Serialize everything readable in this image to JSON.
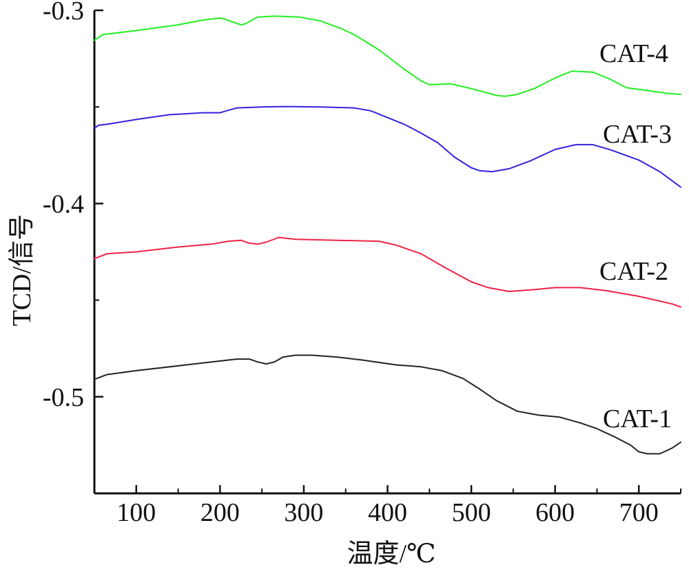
{
  "chart_data": {
    "type": "line",
    "xlabel": "温度/℃",
    "ylabel": "TCD/信号",
    "xlim": [
      50,
      750
    ],
    "ylim": [
      -0.55,
      -0.3
    ],
    "x_ticks": [
      "100",
      "200",
      "300",
      "400",
      "500",
      "600",
      "700"
    ],
    "y_ticks": [
      "-0.3",
      "-0.4",
      "-0.5"
    ],
    "grid": false,
    "legend": "labels beside curves on the right",
    "series": [
      {
        "name": "CAT-4",
        "color": "#22ee22",
        "points": [
          [
            50,
            -0.3155
          ],
          [
            60,
            -0.3125
          ],
          [
            100,
            -0.3105
          ],
          [
            150,
            -0.3075
          ],
          [
            180,
            -0.305
          ],
          [
            200,
            -0.304
          ],
          [
            205,
            -0.3045
          ],
          [
            225,
            -0.3075
          ],
          [
            230,
            -0.307
          ],
          [
            245,
            -0.3035
          ],
          [
            265,
            -0.303
          ],
          [
            295,
            -0.3035
          ],
          [
            320,
            -0.3055
          ],
          [
            345,
            -0.3095
          ],
          [
            360,
            -0.3125
          ],
          [
            390,
            -0.3205
          ],
          [
            420,
            -0.3305
          ],
          [
            440,
            -0.3365
          ],
          [
            450,
            -0.3385
          ],
          [
            475,
            -0.338
          ],
          [
            500,
            -0.3405
          ],
          [
            530,
            -0.344
          ],
          [
            540,
            -0.3445
          ],
          [
            555,
            -0.3435
          ],
          [
            575,
            -0.3405
          ],
          [
            600,
            -0.335
          ],
          [
            620,
            -0.3315
          ],
          [
            645,
            -0.332
          ],
          [
            665,
            -0.3355
          ],
          [
            685,
            -0.34
          ],
          [
            710,
            -0.3415
          ],
          [
            735,
            -0.343
          ],
          [
            750,
            -0.3435
          ]
        ]
      },
      {
        "name": "CAT-3",
        "color": "#3322dd",
        "points": [
          [
            50,
            -0.361
          ],
          [
            55,
            -0.3595
          ],
          [
            65,
            -0.359
          ],
          [
            100,
            -0.3565
          ],
          [
            140,
            -0.354
          ],
          [
            180,
            -0.353
          ],
          [
            200,
            -0.353
          ],
          [
            220,
            -0.3505
          ],
          [
            250,
            -0.35
          ],
          [
            280,
            -0.3498
          ],
          [
            320,
            -0.35
          ],
          [
            360,
            -0.3505
          ],
          [
            380,
            -0.352
          ],
          [
            420,
            -0.359
          ],
          [
            440,
            -0.3635
          ],
          [
            460,
            -0.3685
          ],
          [
            480,
            -0.376
          ],
          [
            500,
            -0.3815
          ],
          [
            510,
            -0.383
          ],
          [
            525,
            -0.3835
          ],
          [
            545,
            -0.382
          ],
          [
            570,
            -0.378
          ],
          [
            600,
            -0.372
          ],
          [
            625,
            -0.3695
          ],
          [
            645,
            -0.3695
          ],
          [
            665,
            -0.372
          ],
          [
            700,
            -0.3775
          ],
          [
            725,
            -0.3835
          ],
          [
            750,
            -0.3915
          ]
        ]
      },
      {
        "name": "CAT-2",
        "color": "#ee2244",
        "points": [
          [
            50,
            -0.4285
          ],
          [
            65,
            -0.426
          ],
          [
            100,
            -0.425
          ],
          [
            150,
            -0.4225
          ],
          [
            190,
            -0.421
          ],
          [
            210,
            -0.4195
          ],
          [
            225,
            -0.419
          ],
          [
            235,
            -0.4205
          ],
          [
            245,
            -0.421
          ],
          [
            255,
            -0.42
          ],
          [
            270,
            -0.4175
          ],
          [
            290,
            -0.4185
          ],
          [
            340,
            -0.419
          ],
          [
            390,
            -0.4195
          ],
          [
            410,
            -0.4215
          ],
          [
            440,
            -0.426
          ],
          [
            470,
            -0.4335
          ],
          [
            500,
            -0.4405
          ],
          [
            520,
            -0.4435
          ],
          [
            545,
            -0.4455
          ],
          [
            575,
            -0.4445
          ],
          [
            600,
            -0.4435
          ],
          [
            630,
            -0.4435
          ],
          [
            660,
            -0.445
          ],
          [
            700,
            -0.448
          ],
          [
            740,
            -0.452
          ],
          [
            750,
            -0.4535
          ]
        ]
      },
      {
        "name": "CAT-1",
        "color": "#222222",
        "points": [
          [
            50,
            -0.491
          ],
          [
            65,
            -0.4885
          ],
          [
            100,
            -0.4865
          ],
          [
            150,
            -0.484
          ],
          [
            190,
            -0.482
          ],
          [
            220,
            -0.4805
          ],
          [
            235,
            -0.4805
          ],
          [
            245,
            -0.482
          ],
          [
            255,
            -0.483
          ],
          [
            265,
            -0.482
          ],
          [
            275,
            -0.4795
          ],
          [
            290,
            -0.4785
          ],
          [
            310,
            -0.4785
          ],
          [
            340,
            -0.4795
          ],
          [
            370,
            -0.481
          ],
          [
            410,
            -0.4835
          ],
          [
            440,
            -0.4845
          ],
          [
            465,
            -0.4865
          ],
          [
            490,
            -0.4905
          ],
          [
            510,
            -0.496
          ],
          [
            530,
            -0.502
          ],
          [
            555,
            -0.5075
          ],
          [
            580,
            -0.5095
          ],
          [
            605,
            -0.5105
          ],
          [
            630,
            -0.5135
          ],
          [
            650,
            -0.5165
          ],
          [
            670,
            -0.5205
          ],
          [
            690,
            -0.525
          ],
          [
            700,
            -0.5285
          ],
          [
            710,
            -0.5295
          ],
          [
            725,
            -0.5295
          ],
          [
            740,
            -0.5265
          ],
          [
            750,
            -0.5235
          ]
        ]
      }
    ]
  }
}
